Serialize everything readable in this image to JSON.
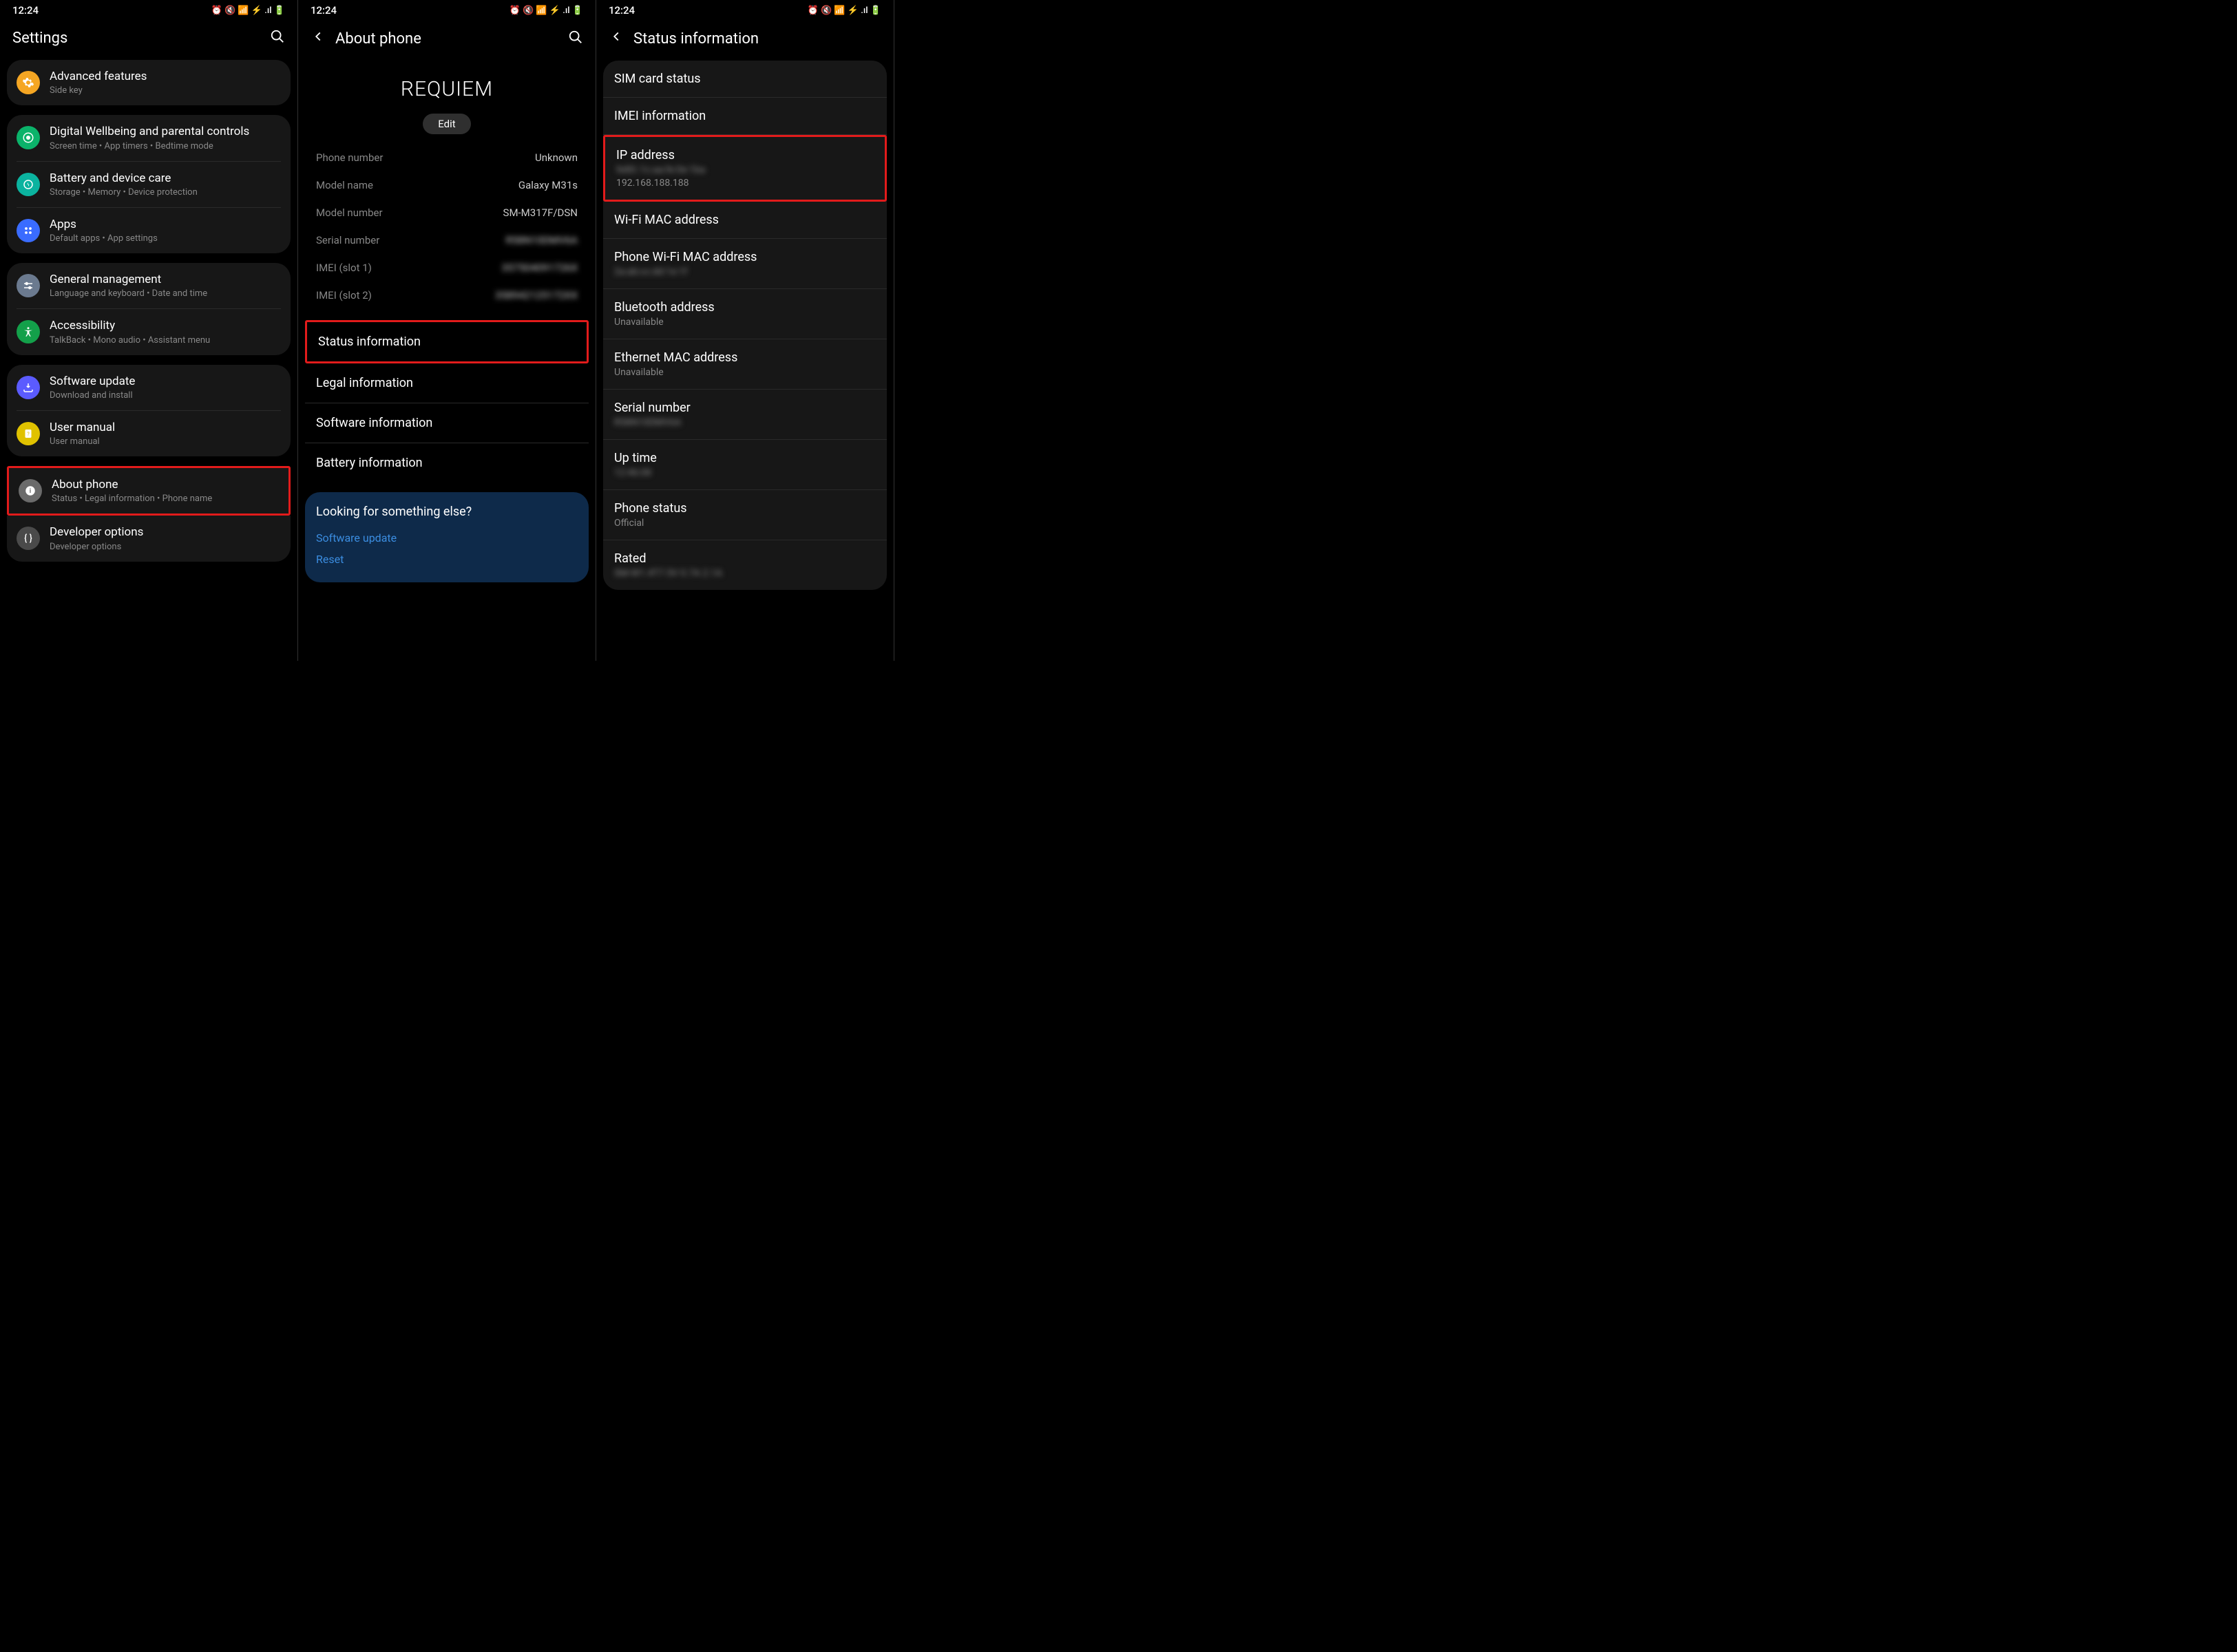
{
  "clock": "12:24",
  "phone1": {
    "title": "Settings",
    "groups": [
      [
        {
          "icon": "gear-icon",
          "bg": "#f5a623",
          "title": "Advanced features",
          "sub": "Side key"
        }
      ],
      [
        {
          "icon": "wellbeing-icon",
          "bg": "#0bb36a",
          "title": "Digital Wellbeing and parental controls",
          "sub": "Screen time  •  App timers  •  Bedtime mode"
        },
        {
          "icon": "battery-icon",
          "bg": "#0bb39f",
          "title": "Battery and device care",
          "sub": "Storage  •  Memory  •  Device protection"
        },
        {
          "icon": "apps-icon",
          "bg": "#3a6cff",
          "title": "Apps",
          "sub": "Default apps  •  App settings"
        }
      ],
      [
        {
          "icon": "sliders-icon",
          "bg": "#6b7a8f",
          "title": "General management",
          "sub": "Language and keyboard  •  Date and time"
        },
        {
          "icon": "accessibility-icon",
          "bg": "#13a04a",
          "title": "Accessibility",
          "sub": "TalkBack  •  Mono audio  •  Assistant menu"
        }
      ],
      [
        {
          "icon": "update-icon",
          "bg": "#5b5bff",
          "title": "Software update",
          "sub": "Download and install"
        },
        {
          "icon": "manual-icon",
          "bg": "#e0c200",
          "title": "User manual",
          "sub": "User manual"
        }
      ]
    ],
    "highlighted": {
      "icon": "info-icon",
      "bg": "#6b6b6b",
      "title": "About phone",
      "sub": "Status  •  Legal information  •  Phone name"
    },
    "lastGroup": [
      {
        "icon": "braces-icon",
        "bg": "#4a4a4a",
        "title": "Developer options",
        "sub": "Developer options"
      }
    ]
  },
  "phone2": {
    "title": "About phone",
    "deviceName": "REQUIEM",
    "editLabel": "Edit",
    "kv": [
      {
        "k": "Phone number",
        "v": "Unknown",
        "blur": false
      },
      {
        "k": "Model name",
        "v": "Galaxy M31s",
        "blur": false
      },
      {
        "k": "Model number",
        "v": "SM-M317F/DSN",
        "blur": false
      },
      {
        "k": "Serial number",
        "v": "R58N10DMV6A",
        "blur": true
      },
      {
        "k": "IMEI (slot 1)",
        "v": "357504091726X",
        "blur": true
      },
      {
        "k": "IMEI (slot 2)",
        "v": "358942125172XX",
        "blur": true
      }
    ],
    "nav": [
      "Status information",
      "Legal information",
      "Software information",
      "Battery information"
    ],
    "highlightedNavIndex": 0,
    "banner": {
      "q": "Looking for something else?",
      "links": [
        "Software update",
        "Reset"
      ]
    }
  },
  "phone3": {
    "title": "Status information",
    "items": [
      {
        "title": "SIM card status"
      },
      {
        "title": "IMEI information"
      },
      {
        "title": "IP address",
        "sub1": "fe80::1c:aa:fe:0e:1ba",
        "sub1blur": true,
        "sub2": "192.168.188.188",
        "highlighted": true
      },
      {
        "title": "Wi-Fi MAC address"
      },
      {
        "title": "Phone Wi-Fi MAC address",
        "sub1": "2a:ab:cc:dd:1e:1f",
        "sub1blur": true
      },
      {
        "title": "Bluetooth address",
        "sub1": "Unavailable"
      },
      {
        "title": "Ethernet MAC address",
        "sub1": "Unavailable"
      },
      {
        "title": "Serial number",
        "sub1": "R58N10DMV6A",
        "sub1blur": true
      },
      {
        "title": "Up time",
        "sub1": "12:46:08",
        "sub1blur": true
      },
      {
        "title": "Phone status",
        "sub1": "Official"
      },
      {
        "title": "Rated",
        "sub1": "SM-W1.4T7.5V 0.7A 2.1A",
        "sub1blur": true
      }
    ]
  },
  "colors": {
    "highlight": "#e21b1b",
    "banner": "#0e2a4a",
    "link": "#3b8de0"
  }
}
